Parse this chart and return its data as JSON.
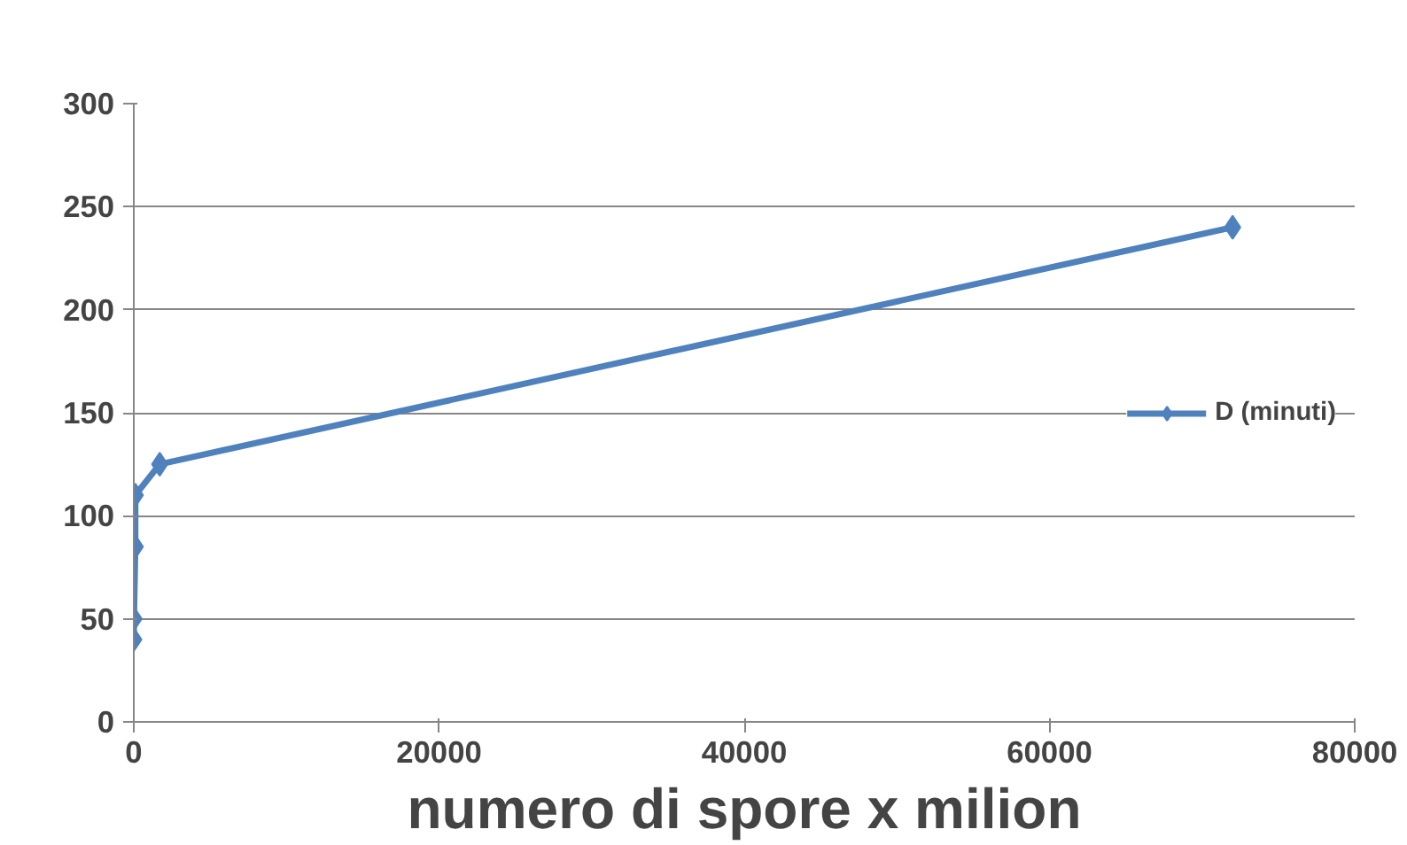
{
  "chart_data": {
    "type": "line",
    "xlabel": "numero di spore x milion",
    "x": [
      1,
      10,
      100,
      100,
      1700,
      72000
    ],
    "series": [
      {
        "name": "D (minuti)",
        "color": "#4f81bd",
        "values": [
          40,
          50,
          85,
          110,
          125,
          240
        ]
      }
    ],
    "xlim": [
      0,
      80000
    ],
    "xticks": [
      0,
      20000,
      40000,
      60000,
      80000
    ],
    "ylim": [
      0,
      300
    ],
    "yticks": [
      0,
      50,
      100,
      150,
      200,
      250,
      300
    ],
    "grid": "y",
    "legend": "right",
    "marker": "diamond",
    "line_style": "solid"
  }
}
